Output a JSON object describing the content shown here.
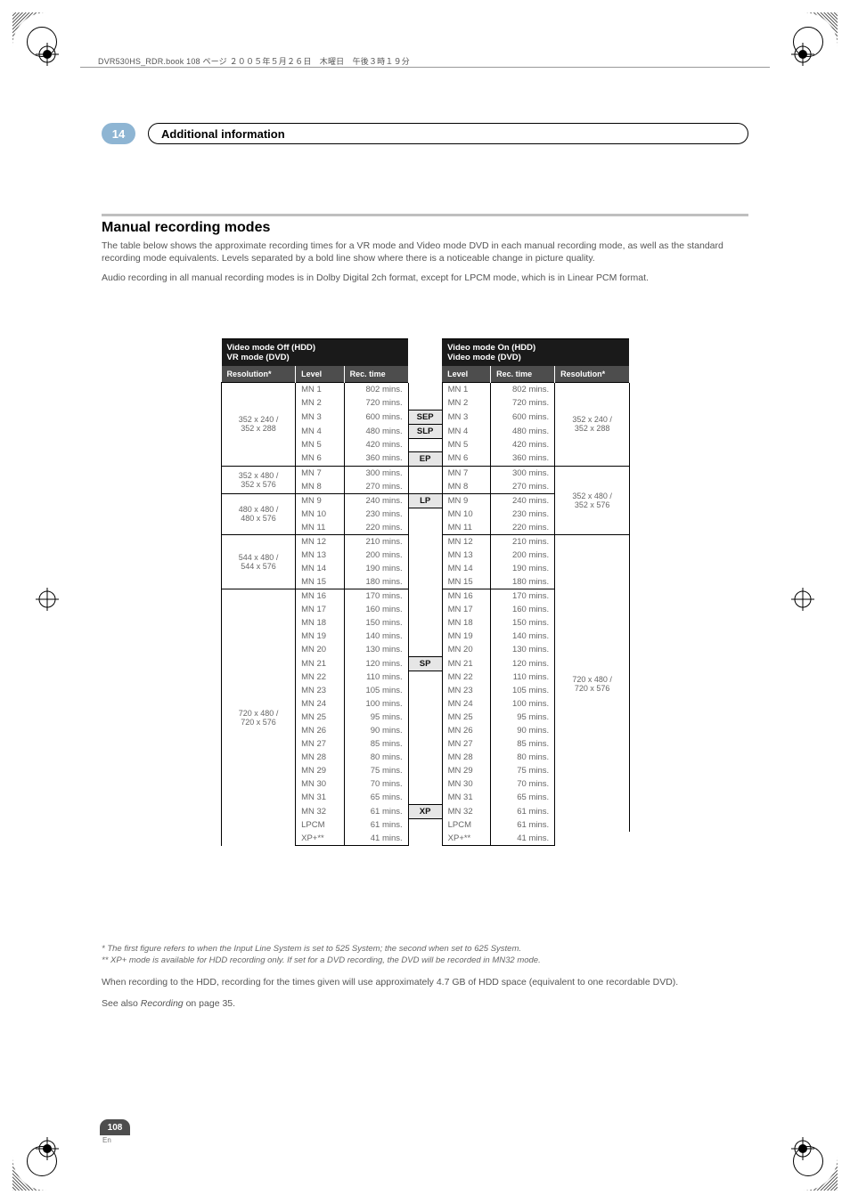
{
  "header_line": "DVR530HS_RDR.book  108 ページ  ２００５年５月２６日　木曜日　午後３時１９分",
  "chapter_number": "14",
  "chapter_title": "Additional information",
  "section_title": "Manual recording modes",
  "section_para1": "The table below shows the approximate recording times for a VR mode and Video mode DVD in each manual recording mode, as well as the standard recording mode equivalents. Levels separated by a bold line show where there is a noticeable change in picture quality.",
  "section_para2": "Audio recording in all manual recording modes is in Dolby Digital 2ch format, except for LPCM mode, which is in Linear PCM format.",
  "th_left_top": "Video mode Off (HDD)\nVR mode (DVD)",
  "th_right_top": "Video mode On (HDD)\nVideo mode (DVD)",
  "th_res": "Resolution*",
  "th_level": "Level",
  "th_time": "Rec. time",
  "groups": [
    {
      "res_l": "352 x 240 /\n352 x 288",
      "res_r": "352 x 240 /\n352 x 288",
      "rows": [
        [
          "MN 1",
          "802 mins.",
          "",
          "MN 1",
          "802 mins."
        ],
        [
          "MN 2",
          "720 mins.",
          "",
          "MN 2",
          "720 mins."
        ],
        [
          "MN 3",
          "600 mins.",
          "SEP",
          "MN 3",
          "600 mins."
        ],
        [
          "MN 4",
          "480 mins.",
          "SLP",
          "MN 4",
          "480 mins."
        ],
        [
          "MN 5",
          "420 mins.",
          "",
          "MN 5",
          "420 mins."
        ],
        [
          "MN 6",
          "360 mins.",
          "EP",
          "MN 6",
          "360 mins."
        ]
      ]
    },
    {
      "res_l": "352 x 480 /\n352 x 576",
      "res_r": "352 x 480 /\n352 x 576",
      "rows": [
        [
          "MN 7",
          "300 mins.",
          "",
          "MN 7",
          "300 mins."
        ],
        [
          "MN 8",
          "270 mins.",
          "",
          "MN 8",
          "270 mins."
        ]
      ]
    },
    {
      "res_l": "480 x 480 /\n480 x 576",
      "res_r": "",
      "rows": [
        [
          "MN 9",
          "240 mins.",
          "LP",
          "MN 9",
          "240 mins."
        ],
        [
          "MN 10",
          "230 mins.",
          "",
          "MN 10",
          "230 mins."
        ],
        [
          "MN 11",
          "220 mins.",
          "",
          "MN 11",
          "220 mins."
        ]
      ]
    },
    {
      "res_l": "544 x 480 /\n544 x 576",
      "res_r": "",
      "rows": [
        [
          "MN 12",
          "210 mins.",
          "",
          "MN 12",
          "210 mins."
        ],
        [
          "MN 13",
          "200 mins.",
          "",
          "MN 13",
          "200 mins."
        ],
        [
          "MN 14",
          "190 mins.",
          "",
          "MN 14",
          "190 mins."
        ],
        [
          "MN 15",
          "180 mins.",
          "",
          "MN 15",
          "180 mins."
        ]
      ]
    },
    {
      "res_l": "720 x 480 /\n720 x 576",
      "res_r": "720 x 480 /\n720 x 576",
      "rows": [
        [
          "MN 16",
          "170 mins.",
          "",
          "MN 16",
          "170 mins."
        ],
        [
          "MN 17",
          "160 mins.",
          "",
          "MN 17",
          "160 mins."
        ],
        [
          "MN 18",
          "150 mins.",
          "",
          "MN 18",
          "150 mins."
        ],
        [
          "MN 19",
          "140 mins.",
          "",
          "MN 19",
          "140 mins."
        ],
        [
          "MN 20",
          "130 mins.",
          "",
          "MN 20",
          "130 mins."
        ],
        [
          "MN 21",
          "120 mins.",
          "SP",
          "MN 21",
          "120 mins."
        ],
        [
          "MN 22",
          "110 mins.",
          "",
          "MN 22",
          "110 mins."
        ],
        [
          "MN 23",
          "105 mins.",
          "",
          "MN 23",
          "105 mins."
        ],
        [
          "MN 24",
          "100 mins.",
          "",
          "MN 24",
          "100 mins."
        ],
        [
          "MN 25",
          "95 mins.",
          "",
          "MN 25",
          "95 mins."
        ],
        [
          "MN 26",
          "90 mins.",
          "",
          "MN 26",
          "90 mins."
        ],
        [
          "MN 27",
          "85 mins.",
          "",
          "MN 27",
          "85 mins."
        ],
        [
          "MN 28",
          "80 mins.",
          "",
          "MN 28",
          "80 mins."
        ],
        [
          "MN 29",
          "75 mins.",
          "",
          "MN 29",
          "75 mins."
        ],
        [
          "MN 30",
          "70 mins.",
          "",
          "MN 30",
          "70 mins."
        ],
        [
          "MN 31",
          "65 mins.",
          "",
          "MN 31",
          "65 mins."
        ],
        [
          "MN 32",
          "61 mins.",
          "XP",
          "MN 32",
          "61 mins."
        ],
        [
          "LPCM",
          "61 mins.",
          "",
          "LPCM",
          "61 mins."
        ],
        [
          "XP+**",
          "41 mins.",
          "",
          "XP+**",
          "41 mins."
        ]
      ]
    }
  ],
  "right_res_group2": "352 x 480 /\n352 x 576",
  "footnote1": "* The first figure refers to when the Input Line System is set to 525 System; the second when set to 625 System.",
  "footnote2": "** XP+ mode is available for HDD recording only. If set for a DVD recording, the DVD will be recorded in MN32 mode.",
  "footnote3": "When recording to the HDD, recording for the times given will use approximately 4.7 GB of HDD space (equivalent to one recordable DVD).",
  "footnote4_a": "See also ",
  "footnote4_i": "Recording",
  "footnote4_b": " on page 35.",
  "page_number": "108",
  "page_lang": "En"
}
